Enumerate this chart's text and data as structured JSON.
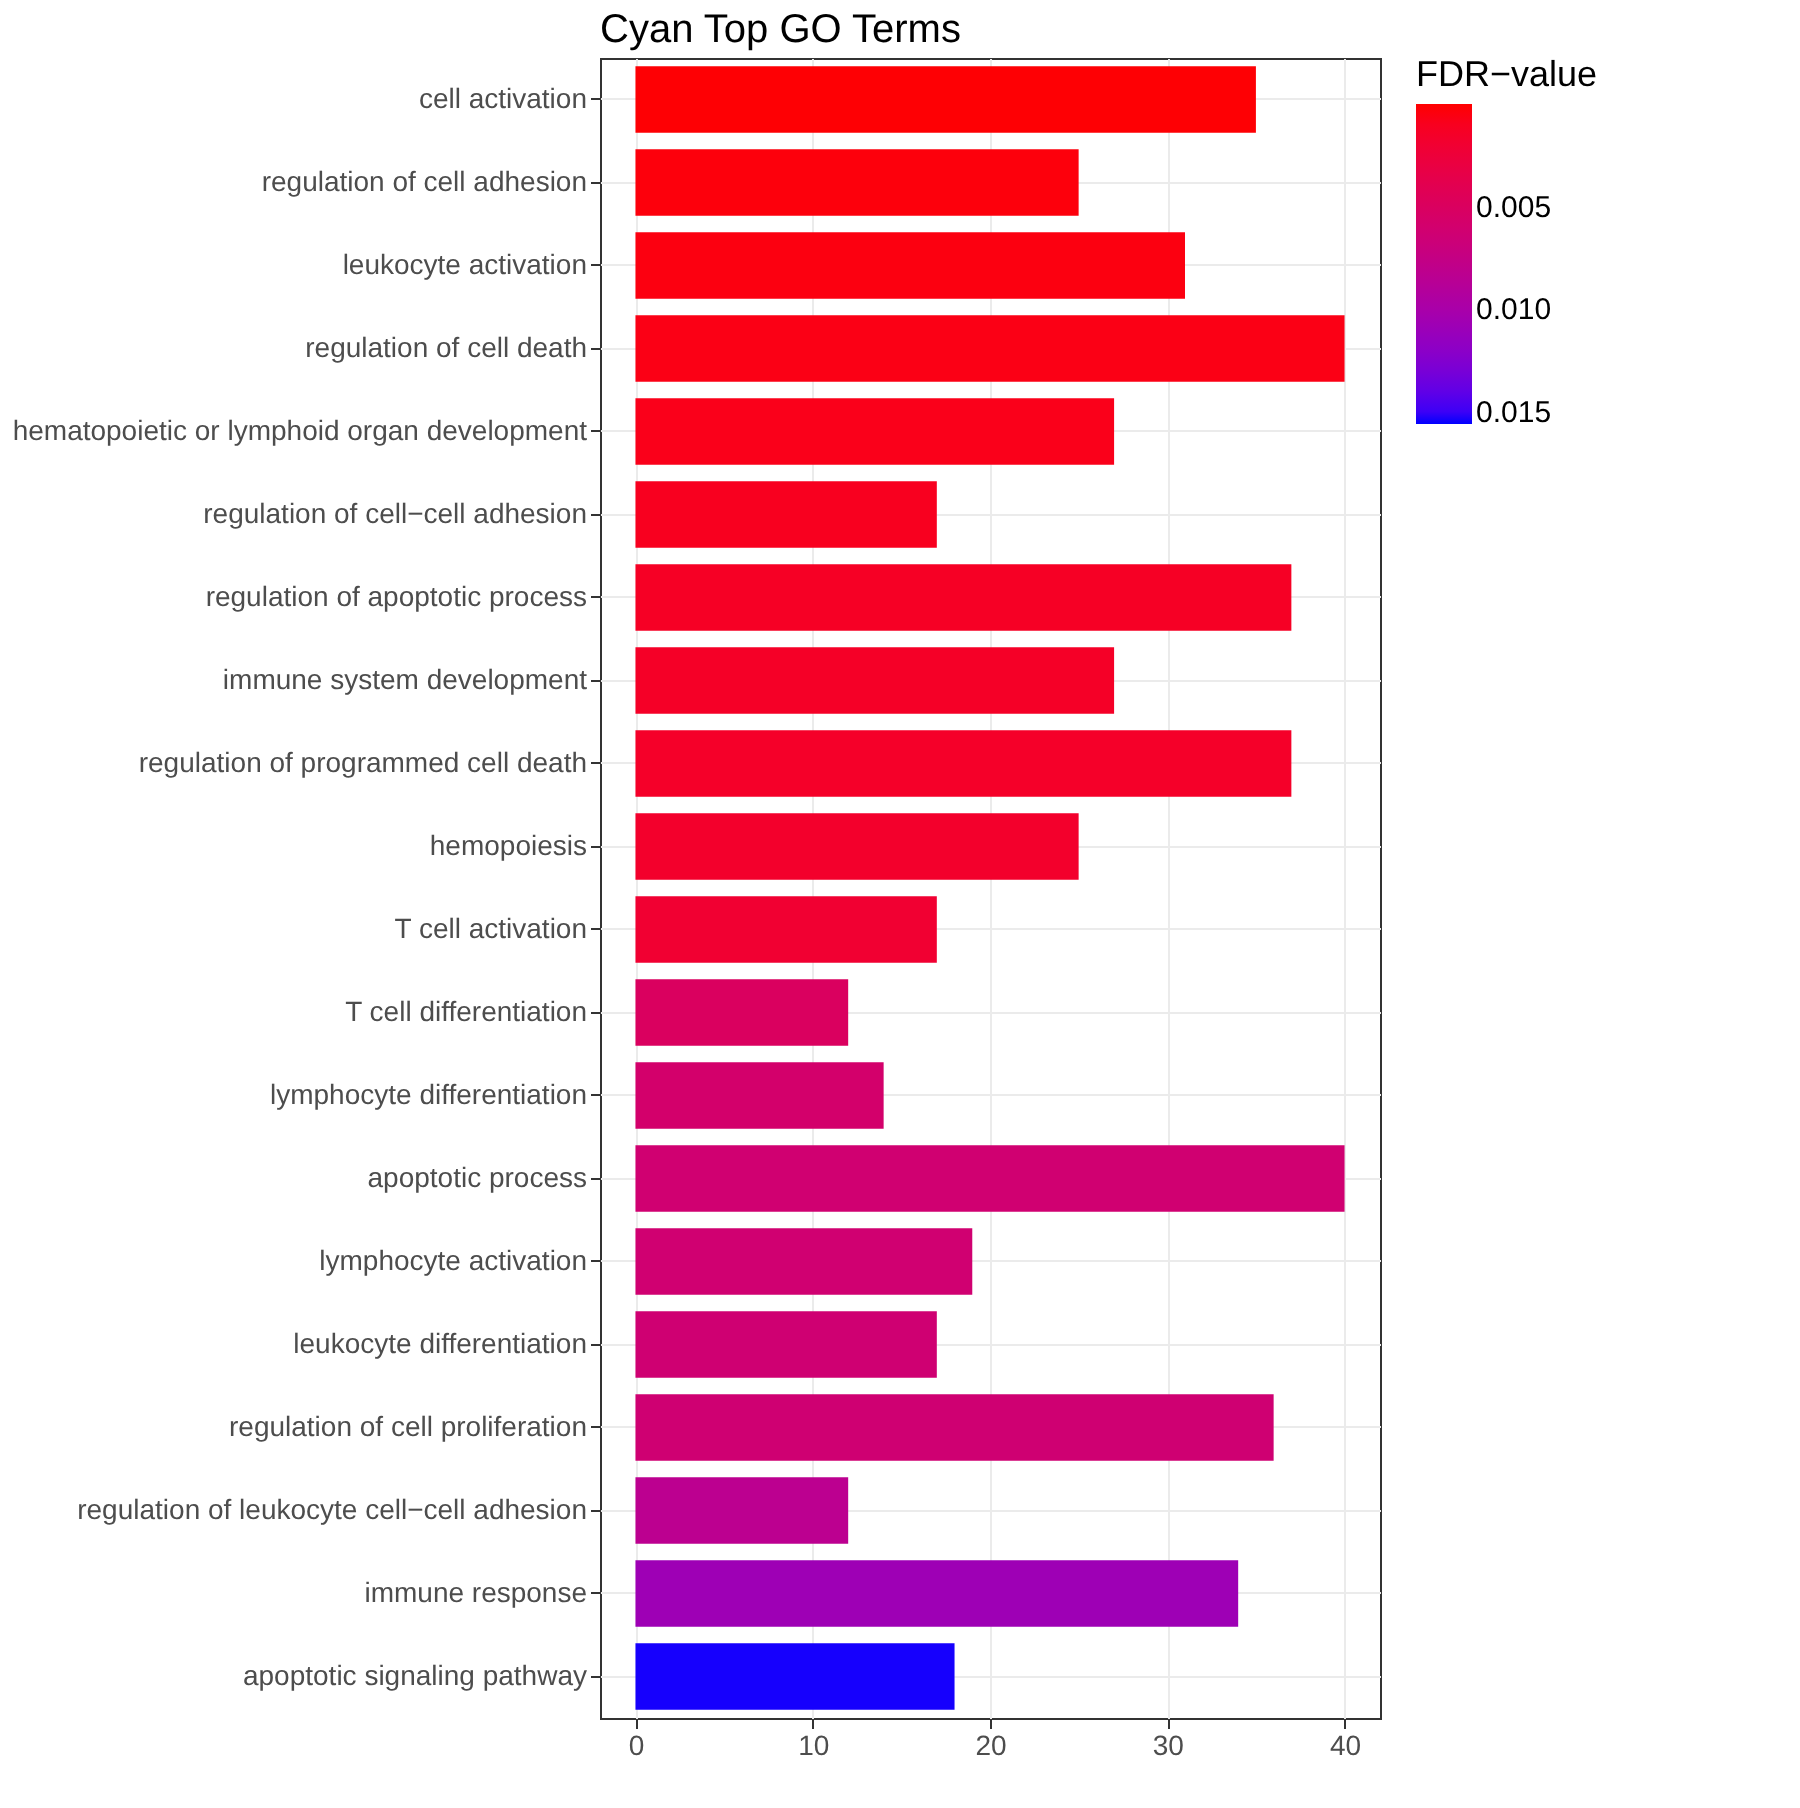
{
  "chart_data": {
    "type": "bar",
    "orientation": "horizontal",
    "title": "Cyan Top GO Terms",
    "clabel": "FDR−value",
    "categories": [
      "cell activation",
      "regulation of cell adhesion",
      "leukocyte activation",
      "regulation of cell death",
      "hematopoietic or lymphoid organ development",
      "regulation of cell−cell adhesion",
      "regulation of apoptotic process",
      "immune system development",
      "regulation of programmed cell death",
      "hemopoiesis",
      "T cell activation",
      "T cell differentiation",
      "lymphocyte differentiation",
      "apoptotic process",
      "lymphocyte activation",
      "leukocyte differentiation",
      "regulation of cell proliferation",
      "regulation of leukocyte cell−cell adhesion",
      "immune response",
      "apoptotic signaling pathway"
    ],
    "values": [
      35,
      25,
      31,
      40,
      27,
      17,
      37,
      27,
      37,
      25,
      17,
      12,
      14,
      40,
      19,
      17,
      36,
      12,
      34,
      18
    ],
    "cvalues": [
      0.0001,
      0.0003,
      0.0004,
      0.0006,
      0.0008,
      0.001,
      0.0013,
      0.0014,
      0.0015,
      0.0017,
      0.002,
      0.005,
      0.0058,
      0.0062,
      0.0062,
      0.0063,
      0.0063,
      0.0083,
      0.0108,
      0.0155
    ],
    "clim": [
      0.0,
      0.0156
    ],
    "cticks": [
      0.005,
      {
        "value": 0.01,
        "label": "0.010"
      },
      0.015
    ],
    "xlim": [
      -2,
      42
    ],
    "xticks": [
      0,
      10,
      20,
      30,
      40
    ],
    "grid": true
  }
}
